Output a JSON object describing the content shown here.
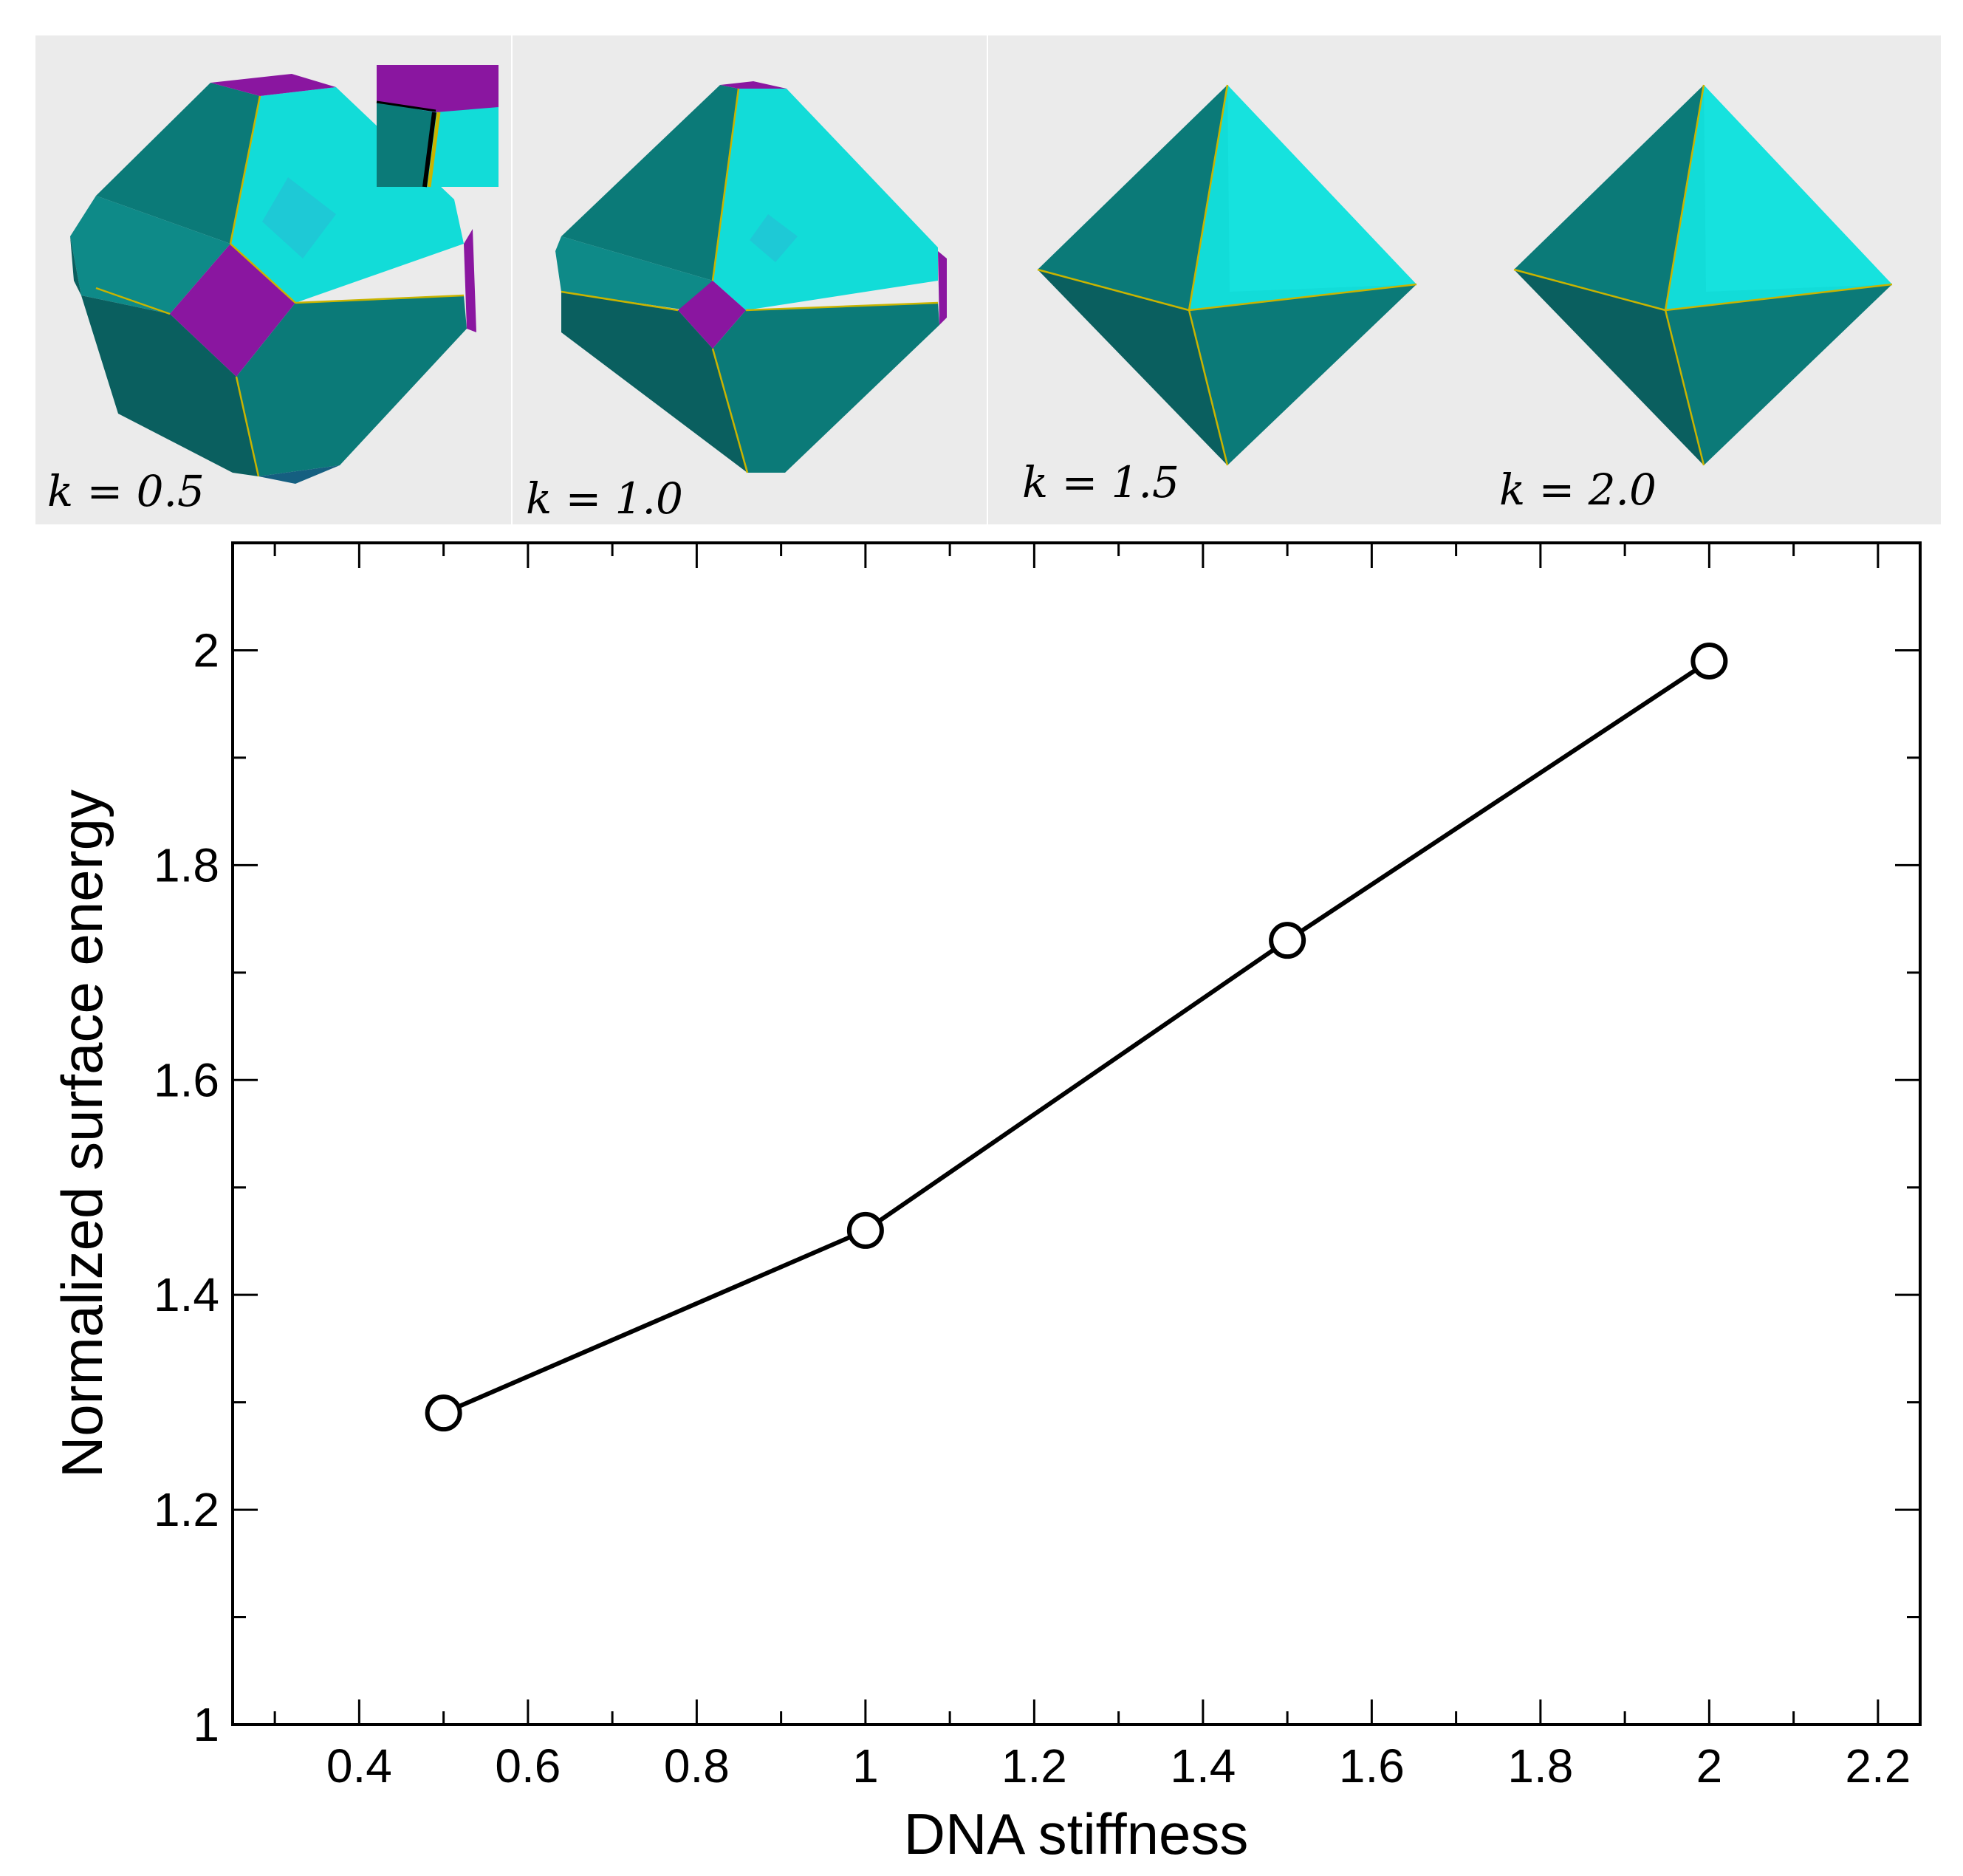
{
  "colors": {
    "panel_bg": "#ebebeb",
    "teal_dark": "#0a5f5f",
    "teal_mid": "#0b7a78",
    "teal_light": "#0e8a88",
    "cyan": "#12dcd8",
    "cyan_bright": "#1ae8e4",
    "magenta": "#8a16a0",
    "edge": "#c9b400",
    "line": "#000000"
  },
  "panels": [
    {
      "label": "k = 0.5",
      "shape": "truncated-octahedron-large-facets",
      "inset": true
    },
    {
      "label": "k = 1.0",
      "shape": "truncated-octahedron-small-facets",
      "inset": false
    },
    {
      "label": "k = 1.5",
      "shape": "octahedron",
      "inset": false
    },
    {
      "label": "k = 2.0",
      "shape": "octahedron",
      "inset": false
    }
  ],
  "chart_data": {
    "type": "line",
    "title": "",
    "xlabel": "DNA stiffness",
    "ylabel": "Normalized surface energy",
    "xlim": [
      0.25,
      2.25
    ],
    "ylim": [
      1.0,
      2.1
    ],
    "xticks": [
      0.4,
      0.6,
      0.8,
      1,
      1.2,
      1.4,
      1.6,
      1.8,
      2,
      2.2
    ],
    "xtick_labels": [
      "0.4",
      "0.6",
      "0.8",
      "1",
      "1.2",
      "1.4",
      "1.6",
      "1.8",
      "2",
      "2.2"
    ],
    "yticks": [
      1,
      1.2,
      1.4,
      1.6,
      1.8,
      2
    ],
    "ytick_labels": [
      "1",
      "1.2",
      "1.4",
      "1.6",
      "1.8",
      "2"
    ],
    "xminor_step": 0.1,
    "yminor_step": 0.1,
    "series": [
      {
        "name": "surface energy",
        "marker": "open-circle",
        "x": [
          0.5,
          1.0,
          1.5,
          2.0
        ],
        "y": [
          1.29,
          1.46,
          1.73,
          1.99
        ]
      }
    ]
  }
}
